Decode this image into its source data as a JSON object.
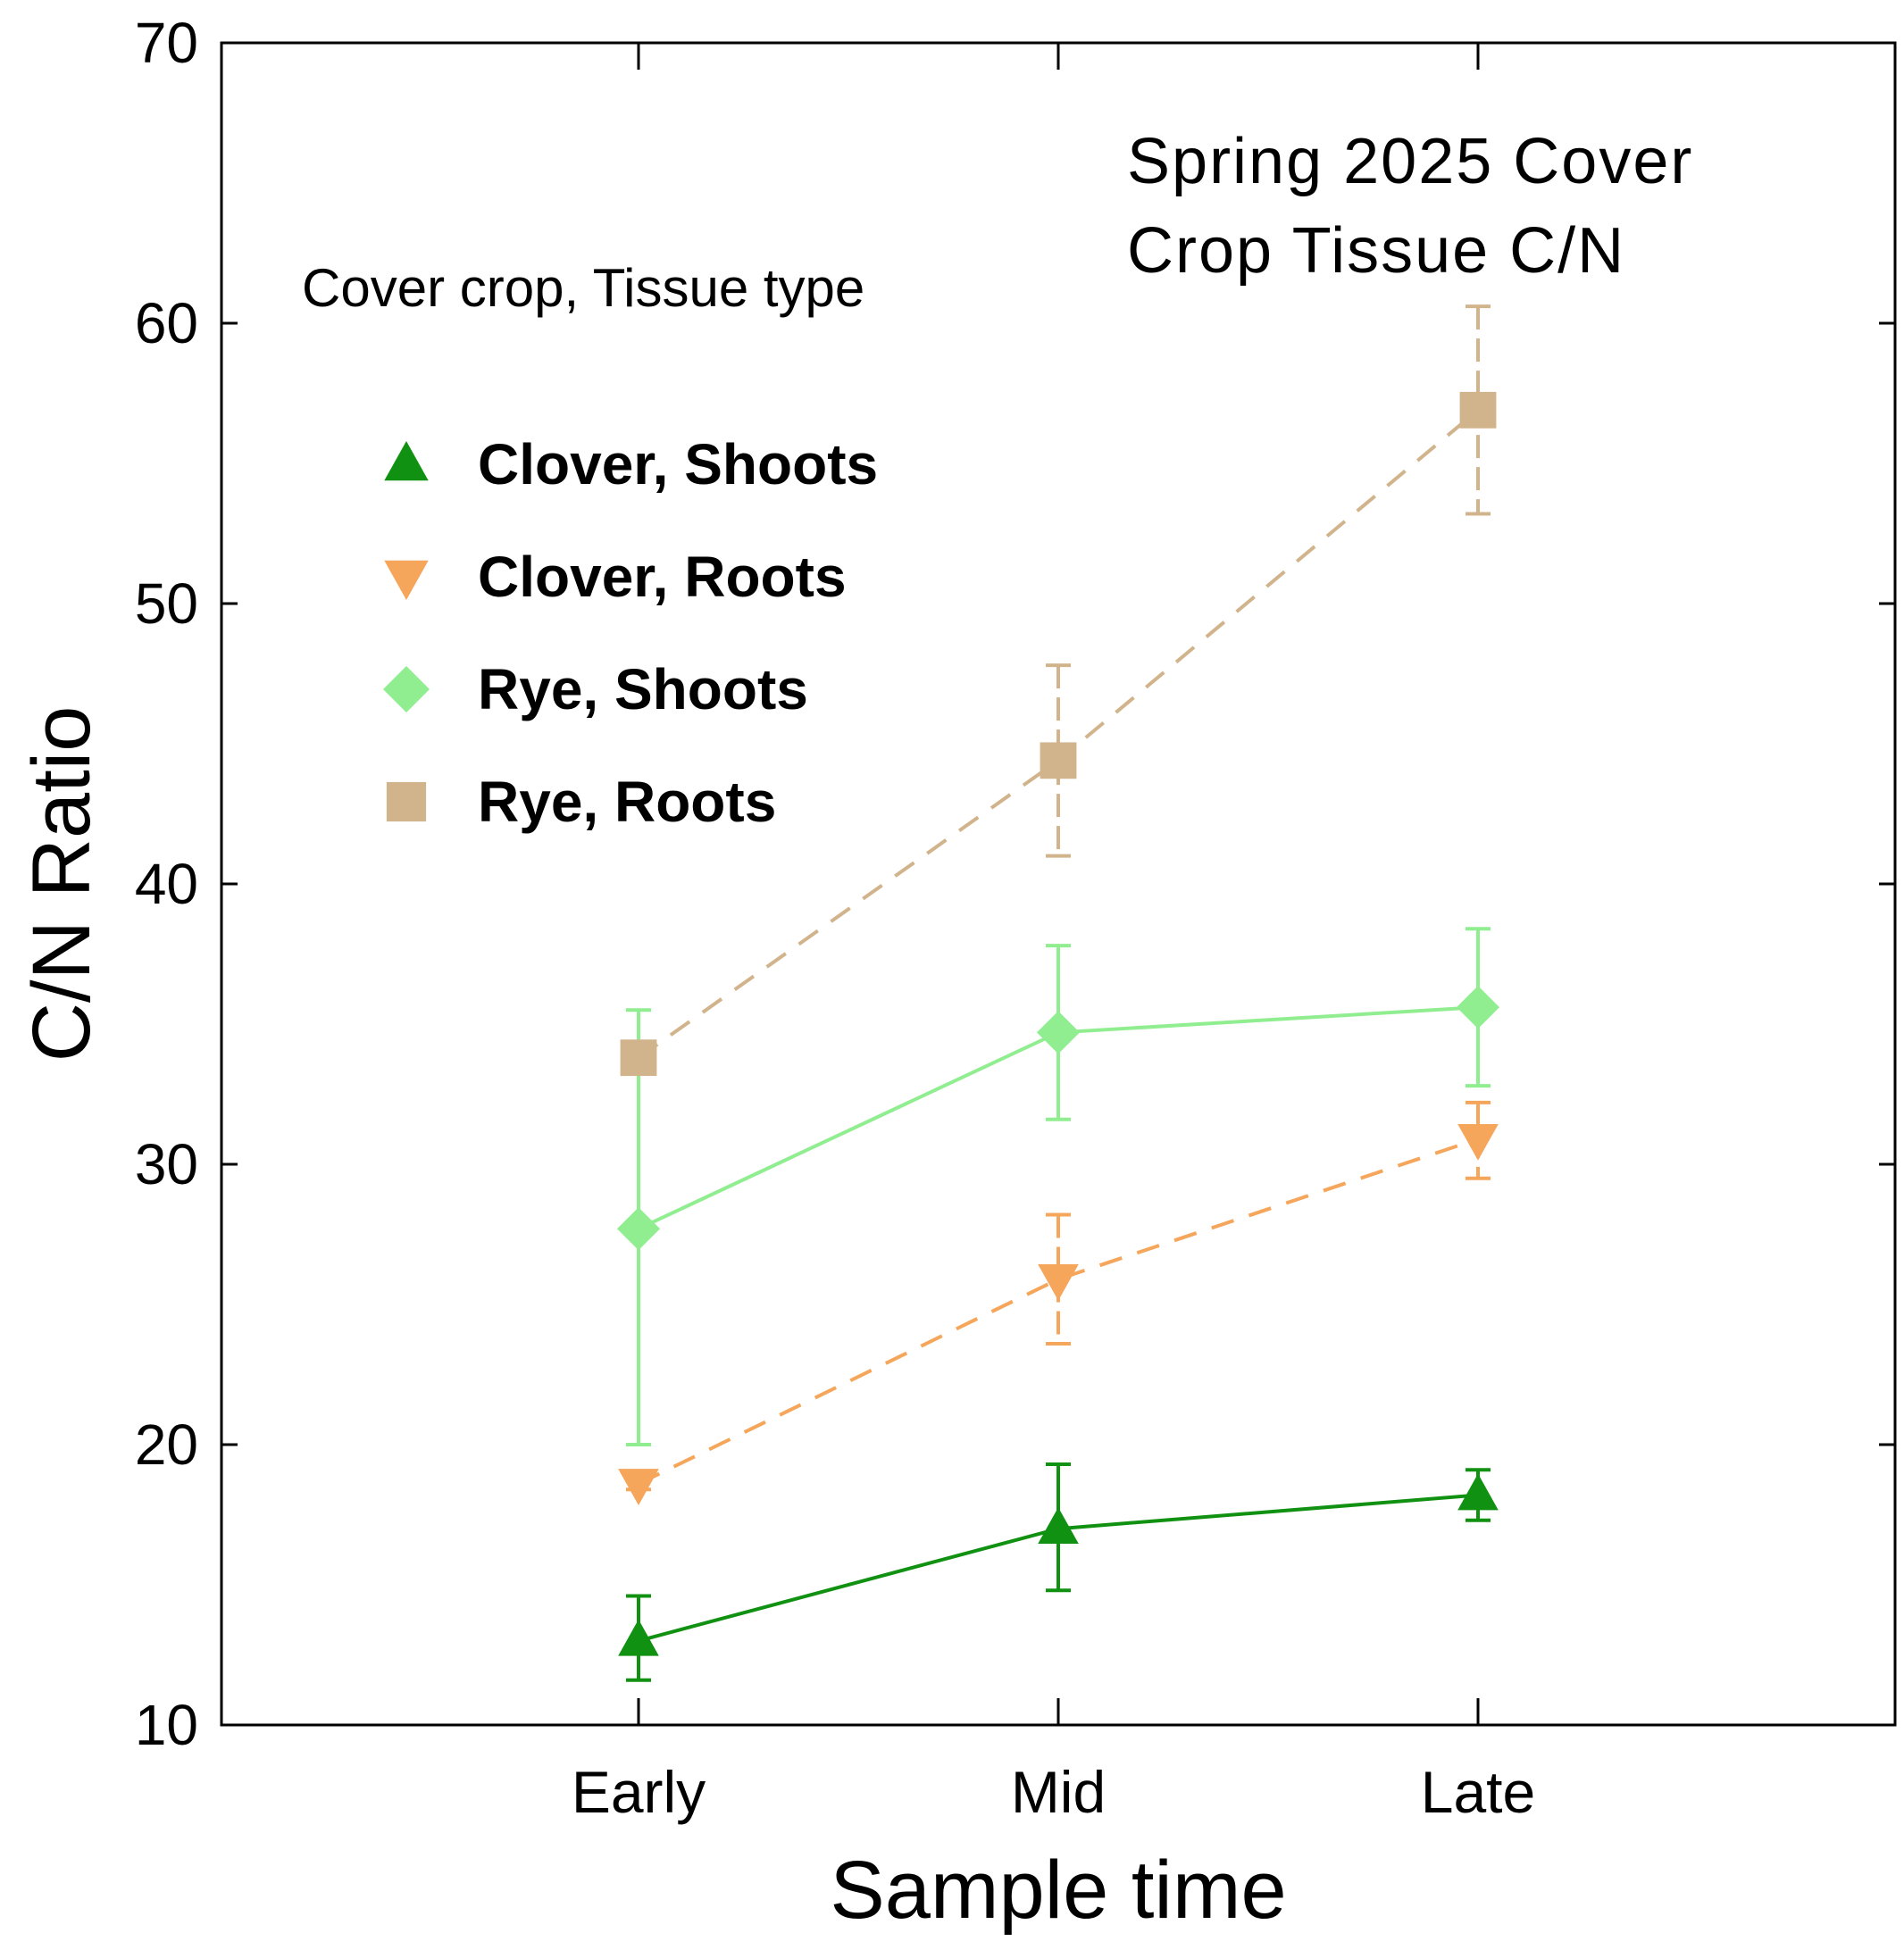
{
  "chart_data": {
    "type": "line",
    "title_lines": [
      "Spring 2025 Cover",
      "Crop Tissue C/N"
    ],
    "xlabel": "Sample time",
    "ylabel": "C/N Ratio",
    "categories": [
      "Early",
      "Mid",
      "Late"
    ],
    "ylim": [
      10,
      70
    ],
    "yticks": [
      10,
      20,
      30,
      40,
      50,
      60,
      70
    ],
    "grid": false,
    "legend_title": "Cover crop, Tissue type",
    "legend_position": "upper-left",
    "series": [
      {
        "name": "Clover, Shoots",
        "marker": "triangle-up",
        "color": "#119111",
        "line_style": "solid",
        "values": [
          13.0,
          17.0,
          18.2
        ],
        "error_low": [
          11.6,
          14.8,
          17.3
        ],
        "error_high": [
          14.6,
          19.3,
          19.1
        ]
      },
      {
        "name": "Clover, Roots",
        "marker": "triangle-down",
        "color": "#f5a65b",
        "line_style": "dashed",
        "values": [
          18.6,
          25.9,
          30.9
        ],
        "error_low": [
          18.4,
          23.6,
          29.5
        ],
        "error_high": [
          18.8,
          28.2,
          32.2
        ]
      },
      {
        "name": "Rye, Shoots",
        "marker": "diamond",
        "color": "#90ee90",
        "line_style": "solid",
        "values": [
          27.7,
          34.7,
          35.6
        ],
        "error_low": [
          20.0,
          31.6,
          32.8
        ],
        "error_high": [
          35.5,
          37.8,
          38.4
        ]
      },
      {
        "name": "Rye, Roots",
        "marker": "square",
        "color": "#d2b48c",
        "line_style": "dashed",
        "values": [
          33.8,
          44.4,
          56.9
        ],
        "error_low": [
          33.8,
          41.0,
          53.2
        ],
        "error_high": [
          33.8,
          47.8,
          60.6
        ]
      }
    ]
  }
}
